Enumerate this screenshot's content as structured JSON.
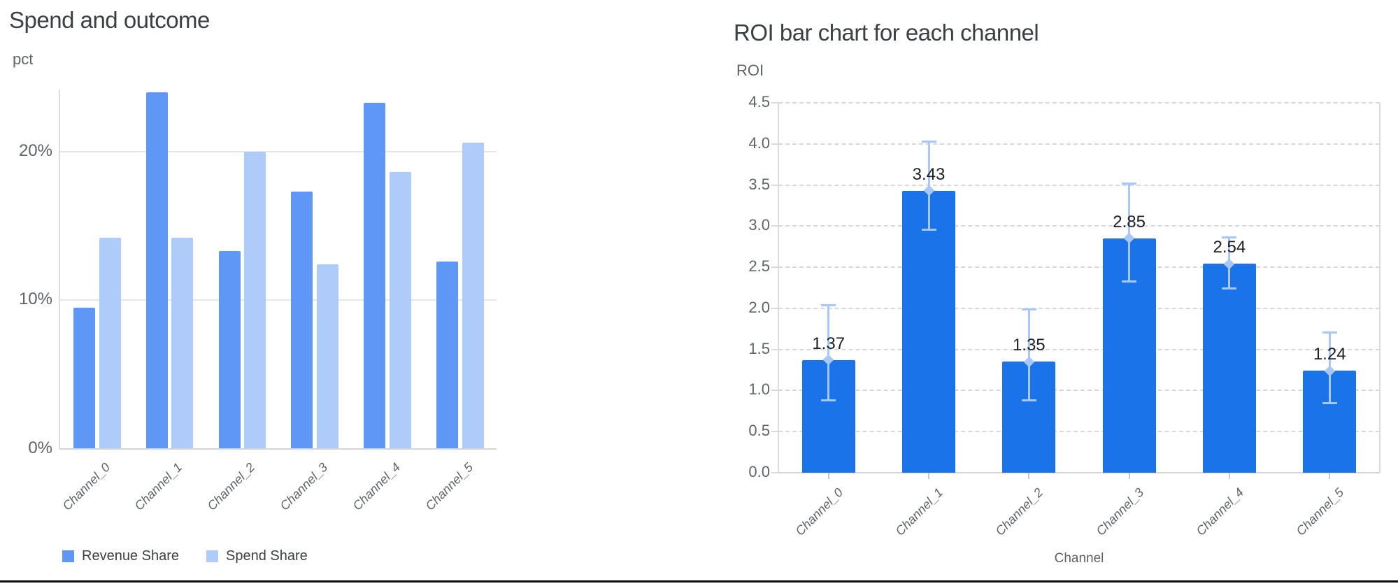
{
  "page": {
    "background": "#ffffff",
    "bottom_rule_color": "#0b0b0b"
  },
  "chart_data": [
    {
      "id": "spend_outcome",
      "type": "bar",
      "title": "Spend and outcome",
      "ylabel": "pct",
      "xlabel": "",
      "categories": [
        "Channel_0",
        "Channel_1",
        "Channel_2",
        "Channel_3",
        "Channel_4",
        "Channel_5"
      ],
      "series": [
        {
          "name": "Revenue Share",
          "color": "#5e97f6",
          "values": [
            9.5,
            24.0,
            13.3,
            17.3,
            23.3,
            12.6
          ]
        },
        {
          "name": "Spend Share",
          "color": "#aecbfa",
          "values": [
            14.2,
            14.2,
            20.0,
            12.4,
            18.6,
            20.6
          ]
        }
      ],
      "y_ticks": [
        {
          "value": 0,
          "label": "0%"
        },
        {
          "value": 10,
          "label": "10%"
        },
        {
          "value": 20,
          "label": "20%"
        }
      ],
      "ylim": [
        0,
        24.2
      ],
      "units": "percent",
      "grid": "solid-horizontal",
      "legend_position": "bottom-left"
    },
    {
      "id": "roi_by_channel",
      "type": "bar",
      "title": "ROI bar chart for each channel",
      "ylabel": "ROI",
      "xlabel": "Channel",
      "categories": [
        "Channel_0",
        "Channel_1",
        "Channel_2",
        "Channel_3",
        "Channel_4",
        "Channel_5"
      ],
      "series": [
        {
          "name": "ROI",
          "color": "#1a73e8",
          "values": [
            1.37,
            3.43,
            1.35,
            2.85,
            2.54,
            1.24
          ]
        }
      ],
      "data_labels": [
        "1.37",
        "3.43",
        "1.35",
        "2.85",
        "2.54",
        "1.24"
      ],
      "error_bars": {
        "color": "#a8c7fa",
        "low": [
          0.88,
          2.95,
          0.88,
          2.32,
          2.24,
          0.84
        ],
        "high": [
          2.04,
          4.03,
          1.99,
          3.52,
          2.87,
          1.71
        ]
      },
      "y_ticks": [
        {
          "value": 0.0,
          "label": "0.0"
        },
        {
          "value": 0.5,
          "label": "0.5"
        },
        {
          "value": 1.0,
          "label": "1.0"
        },
        {
          "value": 1.5,
          "label": "1.5"
        },
        {
          "value": 2.0,
          "label": "2.0"
        },
        {
          "value": 2.5,
          "label": "2.5"
        },
        {
          "value": 3.0,
          "label": "3.0"
        },
        {
          "value": 3.5,
          "label": "3.5"
        },
        {
          "value": 4.0,
          "label": "4.0"
        },
        {
          "value": 4.5,
          "label": "4.5"
        }
      ],
      "ylim": [
        0,
        4.5
      ],
      "grid": "dashed-horizontal",
      "legend_position": "none"
    }
  ]
}
